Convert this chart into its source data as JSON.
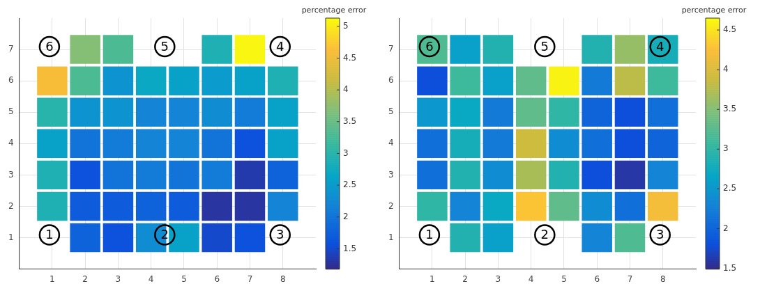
{
  "chart_data": [
    {
      "type": "heatmap",
      "clabel": "percentage error",
      "categories": [
        "1",
        "2",
        "3",
        "4",
        "5",
        "6",
        "7",
        "8"
      ],
      "y_categories": [
        "7",
        "6",
        "5",
        "4",
        "3",
        "2",
        "1"
      ],
      "cells": [
        [
          null,
          3.7,
          3.3,
          null,
          null,
          2.9,
          5.1,
          null
        ],
        [
          4.6,
          3.3,
          2.4,
          2.7,
          2.6,
          2.5,
          2.6,
          2.9
        ],
        [
          3.0,
          2.4,
          2.4,
          2.2,
          2.2,
          2.3,
          2.1,
          2.6
        ],
        [
          2.6,
          2.0,
          2.1,
          2.2,
          2.2,
          2.0,
          1.6,
          2.6
        ],
        [
          2.9,
          1.6,
          2.0,
          2.1,
          2.0,
          2.1,
          1.35,
          1.8
        ],
        [
          2.9,
          1.7,
          1.7,
          1.8,
          1.7,
          1.3,
          1.3,
          2.2
        ],
        [
          null,
          1.8,
          1.6,
          2.3,
          2.6,
          1.5,
          1.6,
          null
        ]
      ],
      "clim": [
        1.18,
        5.13
      ],
      "cticks": [
        1.5,
        2,
        2.5,
        3,
        3.5,
        4,
        4.5,
        5
      ],
      "grid": true,
      "annotations": [
        "1",
        "2",
        "3",
        "4",
        "5",
        "6"
      ]
    },
    {
      "type": "heatmap",
      "clabel": "percentage error",
      "categories": [
        "1",
        "2",
        "3",
        "4",
        "5",
        "6",
        "7",
        "8"
      ],
      "y_categories": [
        "7",
        "6",
        "5",
        "4",
        "3",
        "2",
        "1"
      ],
      "cells": [
        [
          3.2,
          2.6,
          2.9,
          null,
          null,
          2.9,
          3.6,
          2.8
        ],
        [
          1.8,
          3.1,
          2.6,
          3.3,
          4.6,
          2.2,
          3.8,
          3.1
        ],
        [
          2.5,
          2.7,
          2.2,
          3.3,
          3.0,
          2.0,
          1.8,
          2.1
        ],
        [
          2.1,
          2.8,
          2.2,
          3.9,
          2.4,
          2.1,
          1.8,
          2.0
        ],
        [
          2.1,
          2.9,
          2.4,
          3.7,
          2.9,
          1.8,
          1.6,
          2.3
        ],
        [
          3.0,
          2.3,
          2.7,
          4.3,
          3.3,
          2.4,
          2.1,
          4.2
        ],
        [
          null,
          2.9,
          2.6,
          null,
          null,
          2.3,
          3.2,
          null
        ]
      ],
      "clim": [
        1.49,
        4.65
      ],
      "cticks": [
        1.5,
        2,
        2.5,
        3,
        3.5,
        4,
        4.5
      ],
      "grid": true,
      "annotations": [
        "1",
        "2",
        "3",
        "4",
        "5",
        "6"
      ]
    }
  ]
}
